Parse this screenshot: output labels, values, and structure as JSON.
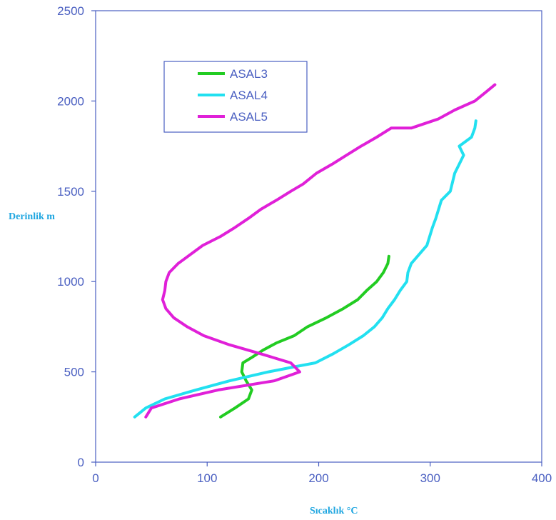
{
  "chart_data": {
    "type": "line",
    "title": "",
    "xlabel": "Sıcaklık °C",
    "ylabel": "Derinlik m",
    "xlim": [
      0,
      400
    ],
    "ylim": [
      0,
      2500
    ],
    "x_ticks": [
      "0",
      "100",
      "200",
      "300",
      "400"
    ],
    "y_ticks": [
      "0",
      "500",
      "1000",
      "1500",
      "2000",
      "2500"
    ],
    "grid": false,
    "legend_position": "top-left",
    "series": [
      {
        "name": "ASAL3",
        "color": "#22cc22",
        "points": [
          [
            112,
            250
          ],
          [
            125,
            300
          ],
          [
            137,
            350
          ],
          [
            140,
            400
          ],
          [
            135,
            450
          ],
          [
            131,
            500
          ],
          [
            132,
            550
          ],
          [
            140,
            580
          ],
          [
            150,
            620
          ],
          [
            162,
            660
          ],
          [
            178,
            700
          ],
          [
            190,
            750
          ],
          [
            207,
            800
          ],
          [
            222,
            850
          ],
          [
            235,
            900
          ],
          [
            243,
            950
          ],
          [
            252,
            1000
          ],
          [
            258,
            1050
          ],
          [
            262,
            1100
          ],
          [
            263,
            1140
          ]
        ]
      },
      {
        "name": "ASAL4",
        "color": "#22e0f0",
        "points": [
          [
            35,
            250
          ],
          [
            45,
            300
          ],
          [
            62,
            350
          ],
          [
            90,
            400
          ],
          [
            120,
            450
          ],
          [
            155,
            500
          ],
          [
            180,
            530
          ],
          [
            197,
            550
          ],
          [
            213,
            600
          ],
          [
            227,
            650
          ],
          [
            240,
            700
          ],
          [
            250,
            750
          ],
          [
            257,
            800
          ],
          [
            262,
            850
          ],
          [
            268,
            900
          ],
          [
            273,
            950
          ],
          [
            279,
            1000
          ],
          [
            280,
            1050
          ],
          [
            283,
            1100
          ],
          [
            290,
            1150
          ],
          [
            297,
            1200
          ],
          [
            302,
            1300
          ],
          [
            305,
            1350
          ],
          [
            310,
            1450
          ],
          [
            318,
            1500
          ],
          [
            322,
            1600
          ],
          [
            326,
            1650
          ],
          [
            330,
            1700
          ],
          [
            326,
            1750
          ],
          [
            337,
            1800
          ],
          [
            340,
            1850
          ],
          [
            341,
            1890
          ]
        ]
      },
      {
        "name": "ASAL5",
        "color": "#e020d8",
        "points": [
          [
            45,
            250
          ],
          [
            50,
            300
          ],
          [
            75,
            350
          ],
          [
            110,
            400
          ],
          [
            160,
            450
          ],
          [
            183,
            500
          ],
          [
            175,
            550
          ],
          [
            148,
            600
          ],
          [
            120,
            650
          ],
          [
            97,
            700
          ],
          [
            82,
            750
          ],
          [
            70,
            800
          ],
          [
            63,
            850
          ],
          [
            60,
            900
          ],
          [
            62,
            950
          ],
          [
            63,
            1000
          ],
          [
            66,
            1050
          ],
          [
            74,
            1100
          ],
          [
            85,
            1150
          ],
          [
            96,
            1200
          ],
          [
            112,
            1250
          ],
          [
            125,
            1300
          ],
          [
            137,
            1350
          ],
          [
            148,
            1400
          ],
          [
            162,
            1450
          ],
          [
            175,
            1500
          ],
          [
            186,
            1540
          ],
          [
            198,
            1600
          ],
          [
            212,
            1650
          ],
          [
            225,
            1700
          ],
          [
            238,
            1750
          ],
          [
            252,
            1800
          ],
          [
            265,
            1850
          ],
          [
            283,
            1850
          ],
          [
            307,
            1900
          ],
          [
            322,
            1950
          ],
          [
            340,
            2000
          ],
          [
            350,
            2050
          ],
          [
            358,
            2090
          ]
        ]
      }
    ]
  }
}
